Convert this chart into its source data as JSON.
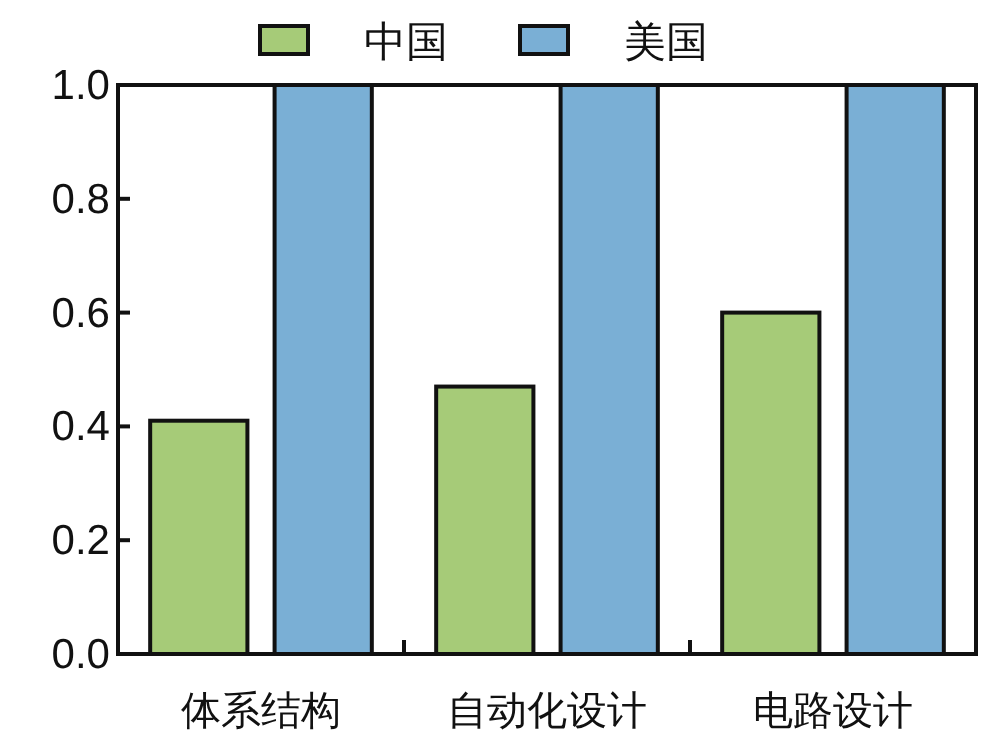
{
  "chart_data": {
    "type": "bar",
    "categories": [
      "体系结构",
      "自动化设计",
      "电路设计"
    ],
    "series": [
      {
        "name": "中国",
        "color": "#a6cb78",
        "values": [
          0.41,
          0.47,
          0.6
        ]
      },
      {
        "name": "美国",
        "color": "#7aafd5",
        "values": [
          1.0,
          1.0,
          1.0
        ]
      }
    ],
    "ylim": [
      0,
      1.0
    ],
    "yticks": [
      {
        "value": 0,
        "label": "0.0"
      },
      {
        "value": 0.2,
        "label": "0.2"
      },
      {
        "value": 0.4,
        "label": "0.4"
      },
      {
        "value": 0.6,
        "label": "0.6"
      },
      {
        "value": 0.8,
        "label": "0.8"
      },
      {
        "value": 1.0,
        "label": "1.0"
      }
    ],
    "legend": "top",
    "grid": false
  }
}
